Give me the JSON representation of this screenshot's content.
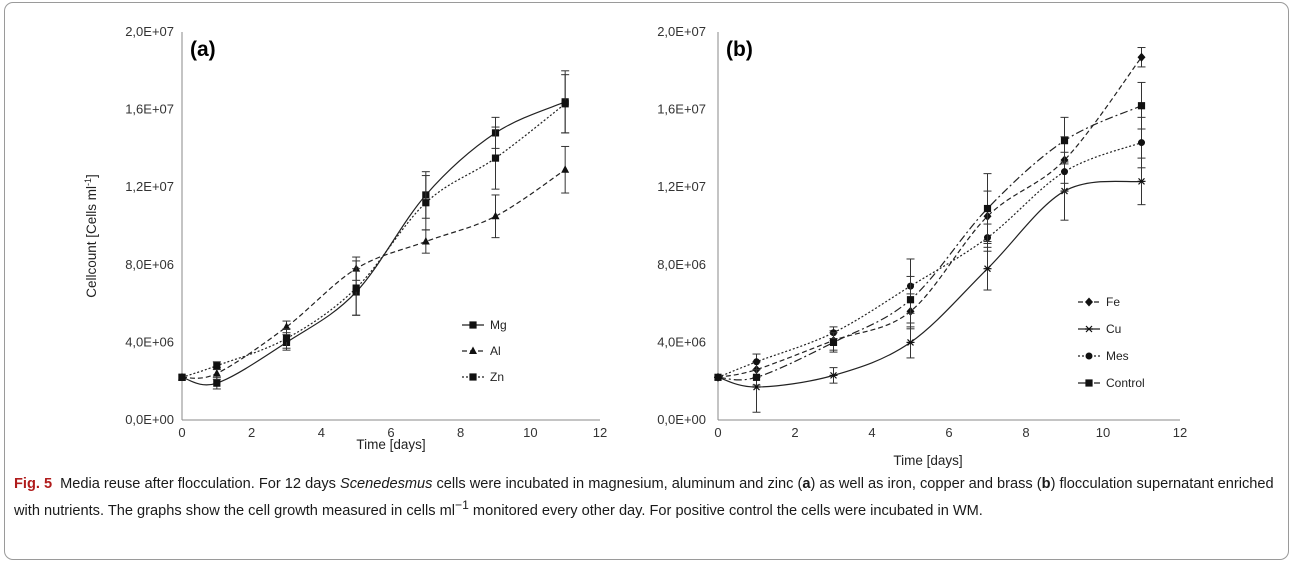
{
  "chart_data": [
    {
      "type": "line",
      "panel_label": "(a)",
      "xlabel": "Time [days]",
      "ylabel_main": "Cellcount [Cells ml",
      "ylabel_sup": "-1",
      "ylabel_end": "]",
      "xlim": [
        0,
        12
      ],
      "ylim": [
        0,
        20000000
      ],
      "x_ticks": [
        0,
        2,
        4,
        6,
        8,
        10,
        12
      ],
      "x_tick_labels": [
        "0",
        "2",
        "4",
        "6",
        "8",
        "10",
        "12"
      ],
      "y_ticks": [
        0,
        4000000,
        8000000,
        12000000,
        16000000,
        20000000
      ],
      "y_tick_labels": [
        "0,0E+00",
        "4,0E+06",
        "8,0E+06",
        "1,2E+07",
        "1,6E+07",
        "2,0E+07"
      ],
      "grid": false,
      "legend_position": "lower-right",
      "series": [
        {
          "name": "Mg",
          "marker": "square",
          "dash": "solid",
          "x": [
            0,
            1,
            3,
            5,
            7,
            9,
            11
          ],
          "y": [
            2200000,
            1900000,
            4000000,
            6600000,
            11600000,
            14800000,
            16400000
          ],
          "err": [
            0,
            300000,
            400000,
            1200000,
            1200000,
            800000,
            1600000
          ]
        },
        {
          "name": "Al",
          "marker": "triangle",
          "dash": "dashed",
          "x": [
            0,
            1,
            3,
            5,
            7,
            9,
            11
          ],
          "y": [
            2200000,
            2400000,
            4800000,
            7800000,
            9200000,
            10500000,
            12900000
          ],
          "err": [
            0,
            300000,
            300000,
            600000,
            600000,
            1100000,
            1200000
          ]
        },
        {
          "name": "Zn",
          "marker": "square",
          "dash": "dotted",
          "x": [
            0,
            1,
            3,
            5,
            7,
            9,
            11
          ],
          "y": [
            2200000,
            2800000,
            4200000,
            6800000,
            11200000,
            13500000,
            16300000
          ],
          "err": [
            0,
            200000,
            500000,
            1400000,
            1400000,
            1600000,
            1500000
          ]
        }
      ]
    },
    {
      "type": "line",
      "panel_label": "(b)",
      "xlabel": "Time [days]",
      "xlim": [
        0,
        12
      ],
      "ylim": [
        0,
        20000000
      ],
      "x_ticks": [
        0,
        2,
        4,
        6,
        8,
        10,
        12
      ],
      "x_tick_labels": [
        "0",
        "2",
        "4",
        "6",
        "8",
        "10",
        "12"
      ],
      "y_ticks": [
        0,
        4000000,
        8000000,
        12000000,
        16000000,
        20000000
      ],
      "y_tick_labels": [
        "0,0E+00",
        "4,0E+06",
        "8,0E+06",
        "1,2E+07",
        "1,6E+07",
        "2,0E+07"
      ],
      "grid": false,
      "legend_position": "lower-right",
      "series": [
        {
          "name": "Fe",
          "marker": "diamond",
          "dash": "dashed",
          "x": [
            0,
            1,
            3,
            5,
            7,
            9,
            11
          ],
          "y": [
            2200000,
            2600000,
            4100000,
            5600000,
            10500000,
            13400000,
            18700000
          ],
          "err": [
            0,
            400000,
            500000,
            900000,
            1300000,
            1200000,
            500000
          ]
        },
        {
          "name": "Cu",
          "marker": "asterisk",
          "dash": "solid",
          "x": [
            0,
            1,
            3,
            5,
            7,
            9,
            11
          ],
          "y": [
            2200000,
            1700000,
            2300000,
            4000000,
            7800000,
            11800000,
            12300000
          ],
          "err": [
            0,
            1300000,
            400000,
            800000,
            1100000,
            1500000,
            1200000
          ]
        },
        {
          "name": "Mes",
          "marker": "circle",
          "dash": "dotted",
          "x": [
            0,
            1,
            3,
            5,
            7,
            9,
            11
          ],
          "y": [
            2200000,
            3000000,
            4500000,
            6900000,
            9400000,
            12800000,
            14300000
          ],
          "err": [
            0,
            400000,
            300000,
            1400000,
            700000,
            1000000,
            1300000
          ]
        },
        {
          "name": "Control",
          "marker": "square",
          "dash": "dashdot",
          "x": [
            0,
            1,
            3,
            5,
            7,
            9,
            11
          ],
          "y": [
            2200000,
            2200000,
            4000000,
            6200000,
            10900000,
            14400000,
            16200000
          ],
          "err": [
            0,
            400000,
            500000,
            1200000,
            1800000,
            1200000,
            1200000
          ]
        }
      ]
    }
  ],
  "caption": {
    "fig_num": "Fig. 5",
    "p1": "Media reuse after flocculation. For 12 days ",
    "genus": "Scenedesmus",
    "p2": " cells were incubated in magnesium, aluminum and zinc (",
    "a": "a",
    "p3": ") as well as iron, copper and brass (",
    "b": "b",
    "p4": ") flocculation supernatant enriched with nutrients. The graphs show the cell growth measured in cells ml",
    "sup": "−1",
    "p5": " monitored every other day. For positive control the cells were incubated in WM."
  }
}
